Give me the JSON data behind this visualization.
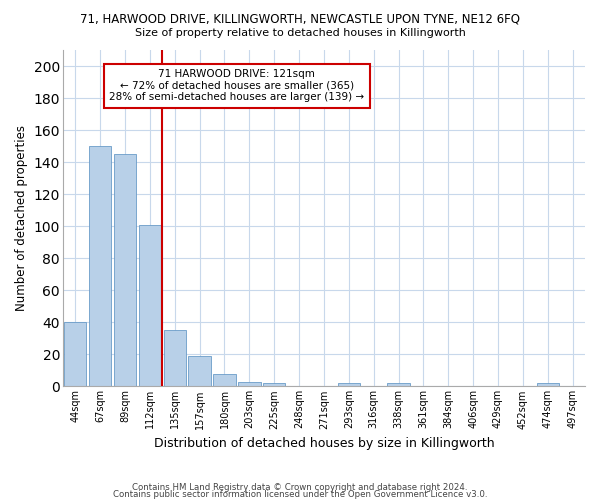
{
  "title_line1": "71, HARWOOD DRIVE, KILLINGWORTH, NEWCASTLE UPON TYNE, NE12 6FQ",
  "title_line2": "Size of property relative to detached houses in Killingworth",
  "xlabel": "Distribution of detached houses by size in Killingworth",
  "ylabel": "Number of detached properties",
  "categories": [
    "44sqm",
    "67sqm",
    "89sqm",
    "112sqm",
    "135sqm",
    "157sqm",
    "180sqm",
    "203sqm",
    "225sqm",
    "248sqm",
    "271sqm",
    "293sqm",
    "316sqm",
    "338sqm",
    "361sqm",
    "384sqm",
    "406sqm",
    "429sqm",
    "452sqm",
    "474sqm",
    "497sqm"
  ],
  "values": [
    40,
    150,
    145,
    101,
    35,
    19,
    8,
    3,
    2,
    0,
    0,
    2,
    0,
    2,
    0,
    0,
    0,
    0,
    0,
    2,
    0
  ],
  "bar_color": "#b8d0e8",
  "bar_edge_color": "#6a9cc8",
  "vline_color": "#cc0000",
  "annotation_line1": "71 HARWOOD DRIVE: 121sqm",
  "annotation_line2": "← 72% of detached houses are smaller (365)",
  "annotation_line3": "28% of semi-detached houses are larger (139) →",
  "annotation_box_color": "#ffffff",
  "annotation_box_edge": "#cc0000",
  "ylim": [
    0,
    210
  ],
  "yticks": [
    0,
    20,
    40,
    60,
    80,
    100,
    120,
    140,
    160,
    180,
    200
  ],
  "background_color": "#ffffff",
  "grid_color": "#c8d8eb",
  "footnote_line1": "Contains HM Land Registry data © Crown copyright and database right 2024.",
  "footnote_line2": "Contains public sector information licensed under the Open Government Licence v3.0."
}
